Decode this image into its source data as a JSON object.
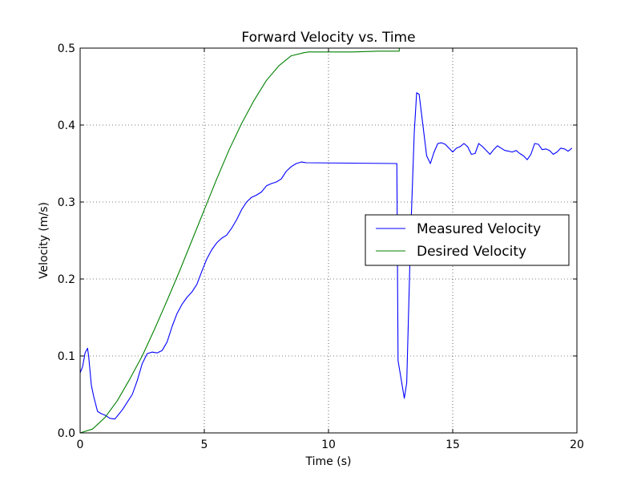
{
  "chart_data": {
    "type": "line",
    "title": "Forward Velocity vs. Time",
    "xlabel": "Time (s)",
    "ylabel": "Velocity (m/s)",
    "xlim": [
      0,
      20
    ],
    "ylim": [
      0,
      0.5
    ],
    "xticks": [
      0,
      5,
      10,
      15,
      20
    ],
    "xtick_labels": [
      "0",
      "5",
      "10",
      "15",
      "20"
    ],
    "yticks": [
      0.0,
      0.1,
      0.2,
      0.3,
      0.4,
      0.5
    ],
    "ytick_labels": [
      "0.0",
      "0.1",
      "0.2",
      "0.3",
      "0.4",
      "0.5"
    ],
    "grid": true,
    "legend": {
      "position": "center-right"
    },
    "series": [
      {
        "name": "Measured Velocity",
        "color": "#0000ff",
        "x": [
          0.0,
          0.1,
          0.2,
          0.3,
          0.35,
          0.45,
          0.55,
          0.7,
          0.85,
          1.0,
          1.2,
          1.4,
          1.5,
          1.7,
          1.9,
          2.1,
          2.3,
          2.5,
          2.7,
          2.9,
          3.1,
          3.3,
          3.5,
          3.7,
          3.9,
          4.1,
          4.3,
          4.5,
          4.7,
          4.9,
          5.1,
          5.3,
          5.5,
          5.7,
          5.9,
          6.1,
          6.3,
          6.5,
          6.7,
          6.9,
          7.1,
          7.3,
          7.5,
          7.7,
          7.9,
          8.1,
          8.3,
          8.5,
          8.7,
          8.9,
          9.1,
          12.75,
          12.8,
          13.05,
          13.15,
          13.3,
          13.45,
          13.55,
          13.65,
          13.8,
          13.95,
          14.1,
          14.25,
          14.4,
          14.55,
          14.7,
          14.85,
          15.0,
          15.15,
          15.3,
          15.45,
          15.6,
          15.75,
          15.9,
          16.05,
          16.2,
          16.35,
          16.5,
          16.65,
          16.8,
          16.95,
          17.1,
          17.25,
          17.4,
          17.55,
          17.7,
          17.85,
          18.0,
          18.15,
          18.3,
          18.45,
          18.6,
          18.75,
          18.9,
          19.05,
          19.2,
          19.35,
          19.5,
          19.65,
          19.8
        ],
        "values": [
          0.078,
          0.086,
          0.104,
          0.11,
          0.098,
          0.062,
          0.047,
          0.028,
          0.025,
          0.023,
          0.019,
          0.018,
          0.022,
          0.03,
          0.04,
          0.05,
          0.068,
          0.09,
          0.103,
          0.105,
          0.104,
          0.107,
          0.118,
          0.138,
          0.155,
          0.167,
          0.176,
          0.183,
          0.193,
          0.21,
          0.226,
          0.238,
          0.247,
          0.253,
          0.257,
          0.266,
          0.277,
          0.29,
          0.3,
          0.306,
          0.309,
          0.313,
          0.321,
          0.324,
          0.326,
          0.33,
          0.34,
          0.346,
          0.35,
          0.352,
          0.351,
          0.35,
          0.094,
          0.045,
          0.065,
          0.25,
          0.39,
          0.442,
          0.44,
          0.4,
          0.36,
          0.35,
          0.365,
          0.376,
          0.377,
          0.375,
          0.37,
          0.365,
          0.37,
          0.372,
          0.376,
          0.372,
          0.362,
          0.363,
          0.376,
          0.372,
          0.367,
          0.362,
          0.368,
          0.373,
          0.37,
          0.367,
          0.366,
          0.365,
          0.367,
          0.363,
          0.36,
          0.355,
          0.362,
          0.376,
          0.375,
          0.368,
          0.369,
          0.367,
          0.362,
          0.365,
          0.37,
          0.369,
          0.366,
          0.37
        ],
        "note": ""
      },
      {
        "name": "Desired Velocity",
        "color": "#008000",
        "x": [
          0.0,
          0.5,
          1.0,
          1.5,
          2.0,
          2.5,
          3.0,
          3.5,
          4.0,
          4.5,
          5.0,
          5.5,
          6.0,
          6.5,
          7.0,
          7.5,
          8.0,
          8.5,
          9.0,
          9.2,
          9.5,
          10.0,
          11.0,
          12.0,
          12.85,
          12.85
        ],
        "values": [
          0.0,
          0.005,
          0.02,
          0.042,
          0.07,
          0.1,
          0.135,
          0.172,
          0.21,
          0.25,
          0.29,
          0.33,
          0.368,
          0.402,
          0.432,
          0.458,
          0.477,
          0.49,
          0.494,
          0.495,
          0.495,
          0.495,
          0.495,
          0.496,
          0.496,
          0.5
        ]
      }
    ]
  }
}
